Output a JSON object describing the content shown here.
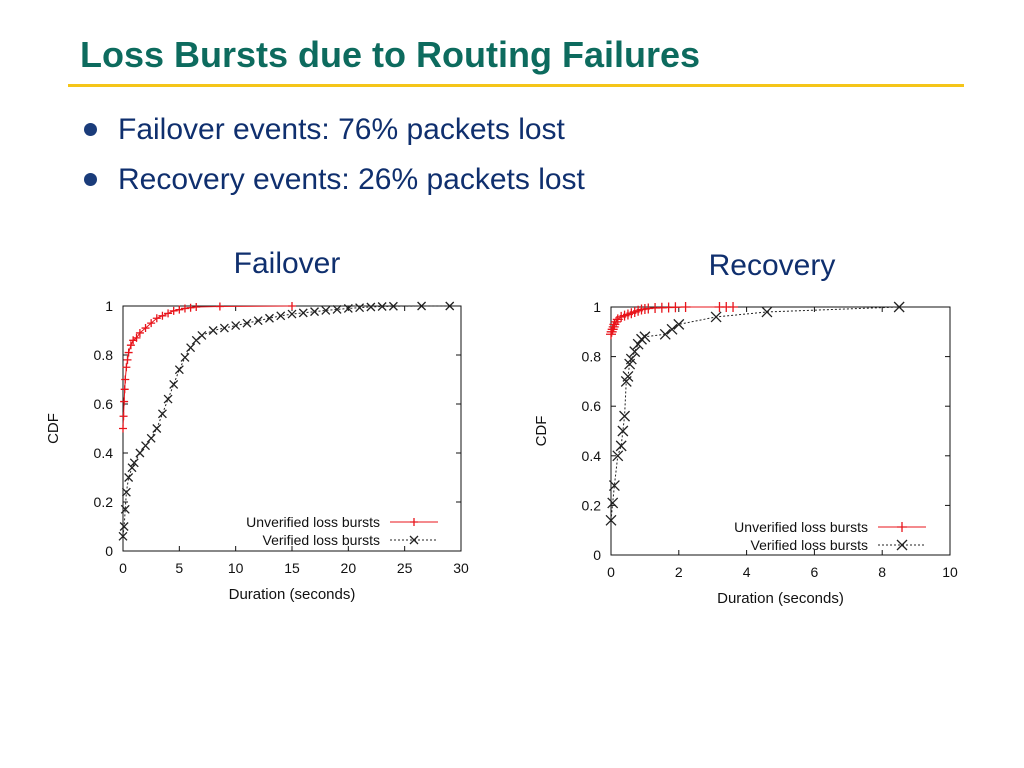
{
  "slide": {
    "title": "Loss Bursts due to Routing Failures",
    "bullets": [
      "Failover events: 76% packets lost",
      "Recovery events: 26% packets lost"
    ],
    "colors": {
      "title": "#0d6b5e",
      "rule": "#f5c518",
      "bullet_text": "#0f2f6e"
    }
  },
  "chart_data": [
    {
      "type": "line",
      "title": "Failover",
      "xlabel": "Duration (seconds)",
      "ylabel": "CDF",
      "xlim": [
        0,
        30
      ],
      "ylim": [
        0,
        1
      ],
      "xticks": [
        0,
        5,
        10,
        15,
        20,
        25,
        30
      ],
      "yticks": [
        0,
        0.2,
        0.4,
        0.6,
        0.8,
        1
      ],
      "xtick_labels": [
        "0",
        "5",
        "10",
        "15",
        "20",
        "25",
        "30"
      ],
      "ytick_labels": [
        "0",
        "0.2",
        "0.4",
        "0.6",
        "0.8",
        "1"
      ],
      "legend_position": "bottom-right",
      "grid": false,
      "series": [
        {
          "name": "Unverified loss bursts",
          "marker": "plus",
          "color": "#e8141b",
          "line": "solid",
          "x": [
            0,
            0.05,
            0.1,
            0.15,
            0.2,
            0.3,
            0.4,
            0.5,
            0.7,
            0.9,
            1.2,
            1.5,
            2.0,
            2.5,
            3.0,
            3.5,
            4.0,
            4.5,
            5.0,
            5.5,
            6.0,
            6.5,
            8.6,
            15.0
          ],
          "y": [
            0.5,
            0.55,
            0.61,
            0.66,
            0.7,
            0.75,
            0.78,
            0.81,
            0.84,
            0.86,
            0.87,
            0.89,
            0.91,
            0.93,
            0.95,
            0.96,
            0.97,
            0.98,
            0.985,
            0.99,
            0.993,
            0.996,
            0.998,
            1.0
          ]
        },
        {
          "name": "Verified loss bursts",
          "marker": "x",
          "color": "#222222",
          "line": "dotted",
          "x": [
            0,
            0.1,
            0.2,
            0.3,
            0.5,
            0.8,
            1.0,
            1.5,
            2.0,
            2.5,
            3.0,
            3.5,
            4.0,
            4.5,
            5.0,
            5.5,
            6.0,
            6.5,
            7.0,
            8.0,
            9.0,
            10.0,
            11.0,
            12.0,
            13.0,
            14.0,
            15.0,
            16.0,
            17.0,
            18.0,
            19.0,
            20.0,
            21.0,
            22.0,
            23.0,
            24.0,
            26.5,
            29.0
          ],
          "y": [
            0.06,
            0.1,
            0.17,
            0.24,
            0.3,
            0.34,
            0.36,
            0.4,
            0.43,
            0.46,
            0.5,
            0.56,
            0.62,
            0.68,
            0.74,
            0.79,
            0.83,
            0.86,
            0.88,
            0.9,
            0.91,
            0.92,
            0.93,
            0.94,
            0.95,
            0.96,
            0.967,
            0.972,
            0.977,
            0.982,
            0.986,
            0.99,
            0.993,
            0.996,
            0.998,
            0.999,
            1.0,
            1.0
          ]
        }
      ]
    },
    {
      "type": "line",
      "title": "Recovery",
      "xlabel": "Duration (seconds)",
      "ylabel": "CDF",
      "xlim": [
        0,
        10
      ],
      "ylim": [
        0,
        1
      ],
      "xticks": [
        0,
        2,
        4,
        6,
        8,
        10
      ],
      "yticks": [
        0,
        0.2,
        0.4,
        0.6,
        0.8,
        1
      ],
      "xtick_labels": [
        "0",
        "2",
        "4",
        "6",
        "8",
        "10"
      ],
      "ytick_labels": [
        "0",
        "0.2",
        "0.4",
        "0.6",
        "0.8",
        "1"
      ],
      "legend_position": "bottom-right",
      "grid": false,
      "series": [
        {
          "name": "Unverified loss bursts",
          "marker": "plus",
          "color": "#e8141b",
          "line": "solid",
          "x": [
            0,
            0.02,
            0.05,
            0.08,
            0.1,
            0.15,
            0.2,
            0.3,
            0.4,
            0.5,
            0.6,
            0.7,
            0.8,
            0.9,
            1.0,
            1.1,
            1.3,
            1.5,
            1.7,
            1.9,
            2.2,
            3.2,
            3.4,
            3.6
          ],
          "y": [
            0.89,
            0.9,
            0.91,
            0.92,
            0.93,
            0.94,
            0.95,
            0.96,
            0.965,
            0.97,
            0.975,
            0.98,
            0.985,
            0.99,
            0.992,
            0.994,
            0.996,
            0.997,
            0.998,
            0.999,
            1.0,
            1.0,
            1.0,
            1.0
          ]
        },
        {
          "name": "Verified loss bursts",
          "marker": "x",
          "color": "#222222",
          "line": "dotted",
          "x": [
            0,
            0.05,
            0.1,
            0.2,
            0.3,
            0.35,
            0.4,
            0.45,
            0.5,
            0.55,
            0.6,
            0.7,
            0.8,
            0.9,
            1.0,
            1.6,
            1.8,
            2.0,
            3.1,
            4.6,
            8.5
          ],
          "y": [
            0.14,
            0.21,
            0.28,
            0.4,
            0.44,
            0.5,
            0.56,
            0.7,
            0.72,
            0.77,
            0.79,
            0.82,
            0.85,
            0.87,
            0.88,
            0.89,
            0.91,
            0.93,
            0.96,
            0.98,
            1.0
          ]
        }
      ]
    }
  ]
}
